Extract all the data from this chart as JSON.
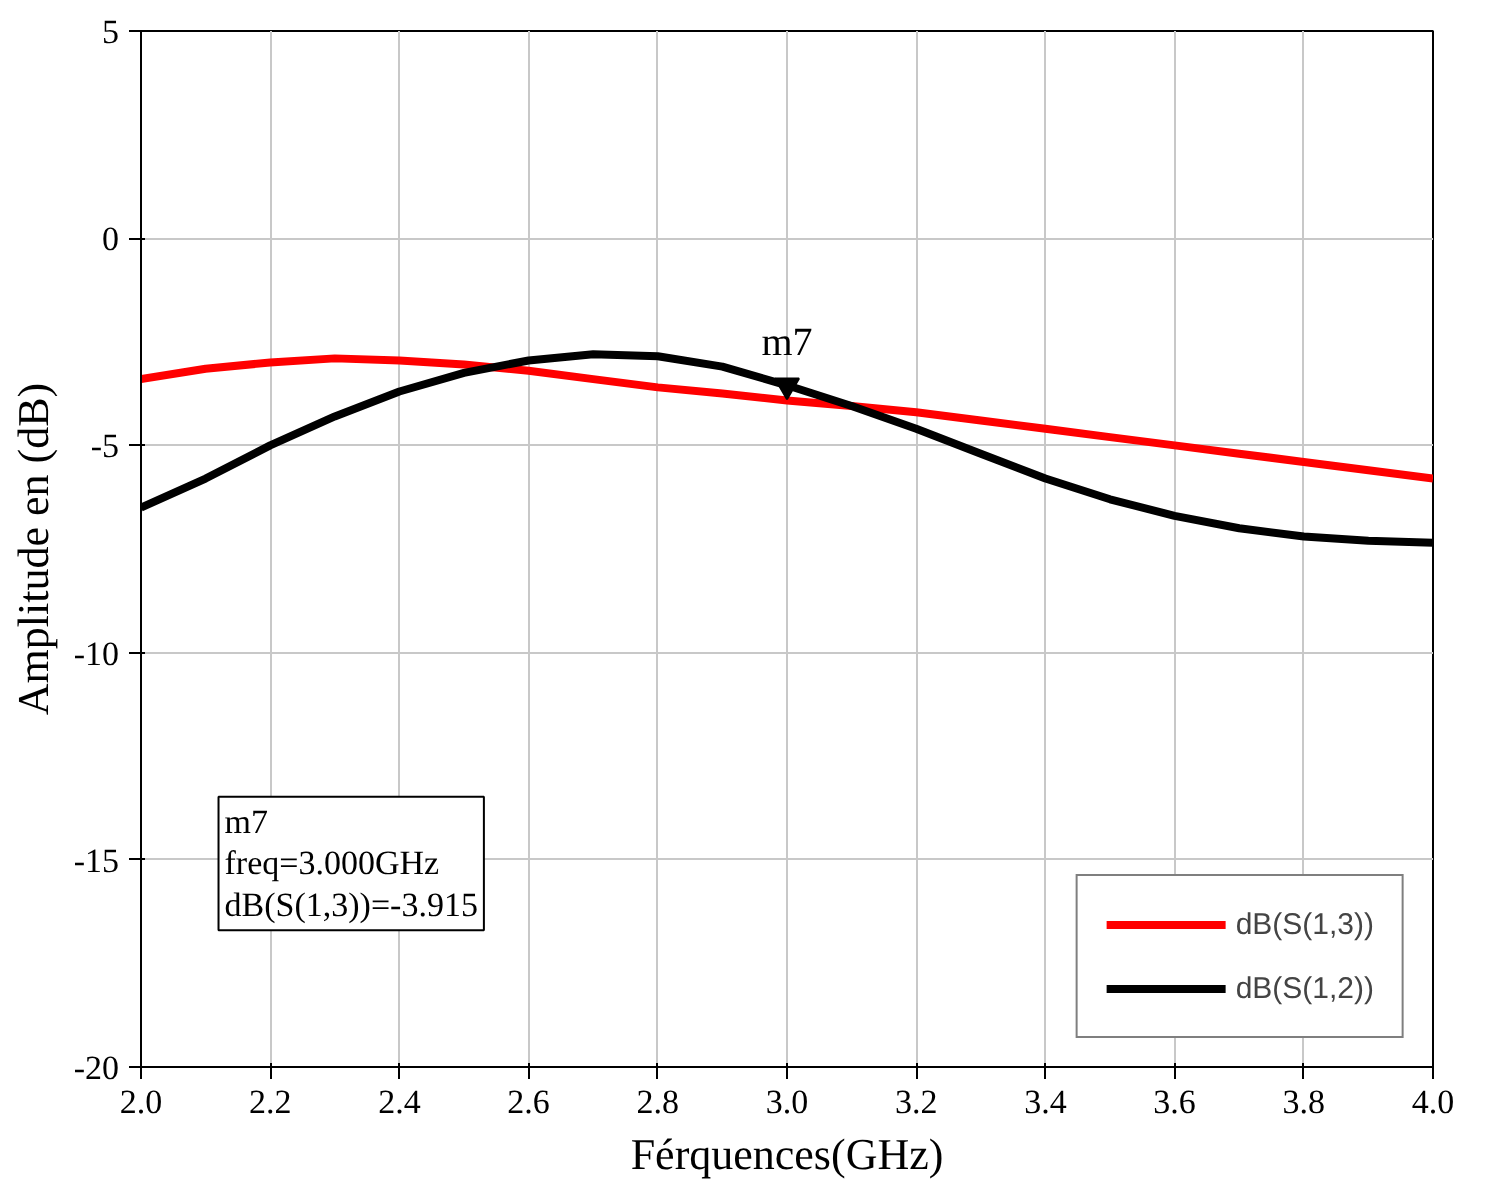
{
  "chart_data": {
    "type": "line",
    "xlabel": "Férquences(GHz)",
    "ylabel": "Amplitude en (dB)",
    "x": [
      2.0,
      2.1,
      2.2,
      2.3,
      2.4,
      2.5,
      2.6,
      2.7,
      2.8,
      2.9,
      3.0,
      3.1,
      3.2,
      3.3,
      3.4,
      3.5,
      3.6,
      3.7,
      3.8,
      3.9,
      4.0
    ],
    "series": [
      {
        "name": "dB(S(1,3))",
        "color": "#ff0000",
        "values": [
          -3.4,
          -3.15,
          -3.0,
          -2.9,
          -2.95,
          -3.05,
          -3.2,
          -3.4,
          -3.6,
          -3.75,
          -3.915,
          -4.05,
          -4.2,
          -4.4,
          -4.6,
          -4.8,
          -5.0,
          -5.2,
          -5.4,
          -5.6,
          -5.8
        ]
      },
      {
        "name": "dB(S(1,2))",
        "color": "#000000",
        "values": [
          -6.5,
          -5.8,
          -5.0,
          -4.3,
          -3.7,
          -3.25,
          -2.95,
          -2.8,
          -2.85,
          -3.1,
          -3.55,
          -4.05,
          -4.6,
          -5.2,
          -5.8,
          -6.3,
          -6.7,
          -7.0,
          -7.2,
          -7.3,
          -7.35
        ]
      }
    ],
    "xlim": [
      2.0,
      4.0
    ],
    "ylim": [
      -20,
      5
    ],
    "xticks": [
      {
        "value": 2.0,
        "label": "2.0"
      },
      2.2,
      2.4,
      2.6,
      2.8,
      {
        "value": 3.0,
        "label": "3.0"
      },
      3.2,
      3.4,
      3.6,
      3.8,
      {
        "value": 4.0,
        "label": "4.0"
      }
    ],
    "yticks": [
      5,
      0,
      -5,
      -10,
      -15,
      -20
    ],
    "grid": true,
    "legend": "bottom right",
    "line_style": "solid",
    "marker": "none",
    "annotations": [
      {
        "text": "m7",
        "x": 3.0,
        "y": -3.55
      },
      "m7\nfreq=3.000GHz\ndB(S(1,3))=-3.915"
    ]
  }
}
